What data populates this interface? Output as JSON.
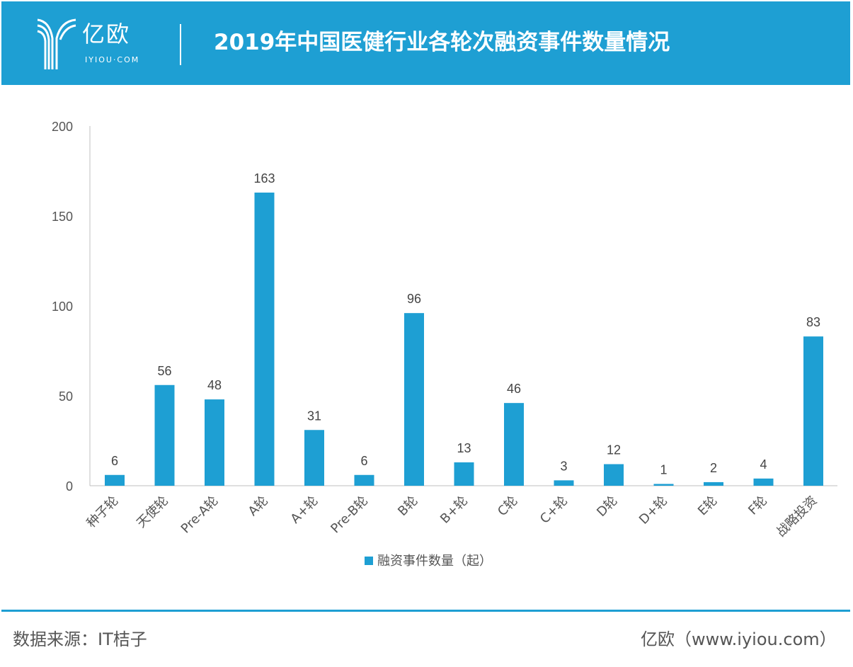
{
  "header": {
    "logo_cn": "亿欧",
    "logo_en": "IYIOU·COM",
    "title": "2019年中国医健行业各轮次融资事件数量情况"
  },
  "chart_data": {
    "type": "bar",
    "title": "2019年中国医健行业各轮次融资事件数量情况",
    "categories": [
      "种子轮",
      "天使轮",
      "Pre-A轮",
      "A轮",
      "A+轮",
      "Pre-B轮",
      "B轮",
      "B+轮",
      "C轮",
      "C+轮",
      "D轮",
      "D+轮",
      "E轮",
      "F轮",
      "战略投资"
    ],
    "series": [
      {
        "name": "融资事件数量（起）",
        "values": [
          6,
          56,
          48,
          163,
          31,
          6,
          96,
          13,
          46,
          3,
          12,
          1,
          2,
          4,
          83
        ]
      }
    ],
    "ylim": [
      0,
      200
    ],
    "yticks": [
      0,
      50,
      100,
      150,
      200
    ],
    "grid": false,
    "legend": "bottom",
    "color": "#1e9fd3"
  },
  "footer": {
    "source": "数据来源：IT桔子",
    "site": "亿欧（www.iyiou.com）"
  }
}
